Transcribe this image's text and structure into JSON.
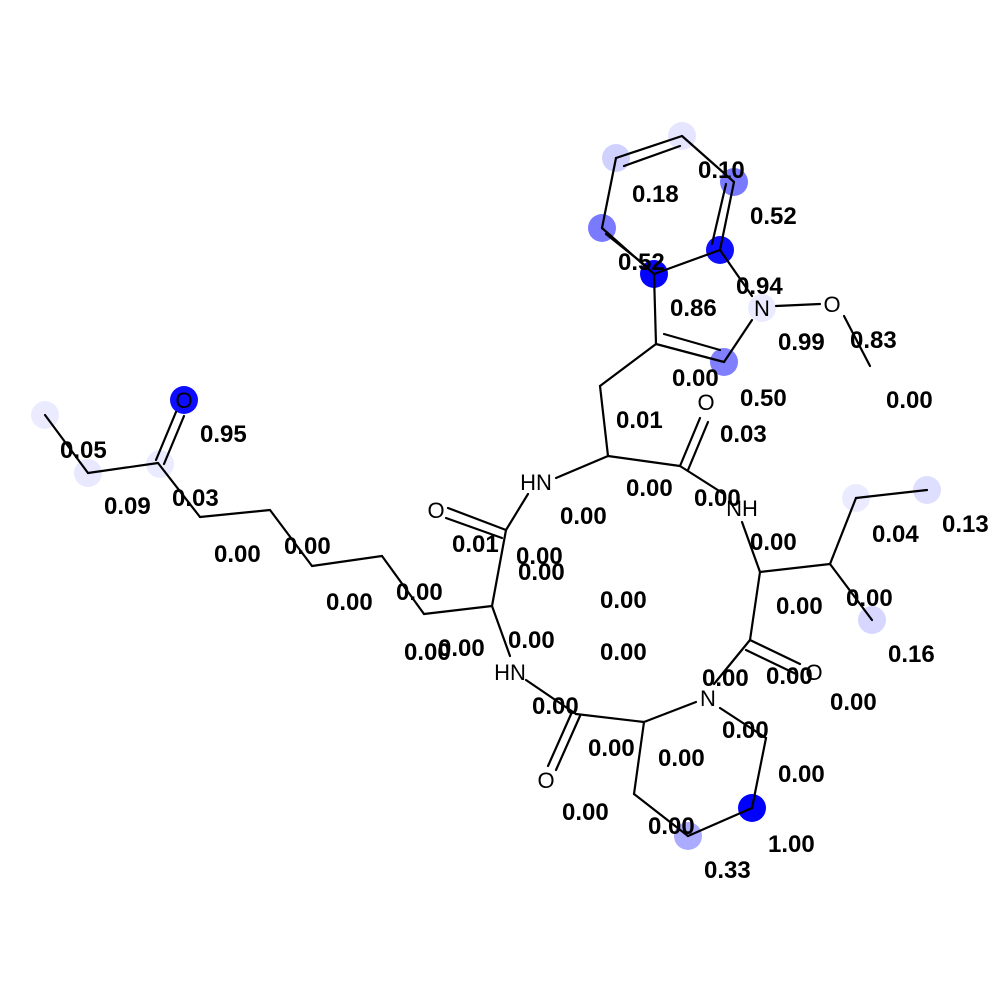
{
  "highlight_color": "#0000ff",
  "atom_labels": [
    {
      "text": "O"
    },
    {
      "text": "N"
    },
    {
      "text": "O"
    },
    {
      "text": "O"
    },
    {
      "text": "HN"
    },
    {
      "text": "NH"
    },
    {
      "text": "O"
    },
    {
      "text": "HN"
    },
    {
      "text": "O"
    },
    {
      "text": "N"
    },
    {
      "text": "O"
    }
  ],
  "atom_weights": [
    0.05,
    0.09,
    0.95,
    0.03,
    0.18,
    0.1,
    0.52,
    0.52,
    0.94,
    0.99,
    0.0,
    0.5,
    0.13,
    0.04,
    0.16,
    1.0,
    0.33
  ],
  "scores": [
    "0.05",
    "0.09",
    "0.95",
    "0.03",
    "0.00",
    "0.00",
    "0.00",
    "0.00",
    "0.00",
    "0.01",
    "0.00",
    "0.00",
    "0.00",
    "0.00",
    "0.18",
    "0.10",
    "0.52",
    "0.52",
    "0.94",
    "0.86",
    "0.99",
    "0.83",
    "0.00",
    "0.50",
    "0.00",
    "0.01",
    "0.03",
    "0.00",
    "0.00",
    "0.00",
    "0.00",
    "0.04",
    "0.13",
    "0.00",
    "0.00",
    "0.16",
    "0.00",
    "0.00",
    "0.00",
    "0.00",
    "0.00",
    "0.00",
    "0.00",
    "0.00",
    "0.00",
    "1.00",
    "0.33",
    "0.00",
    "0.00",
    "0.00"
  ]
}
